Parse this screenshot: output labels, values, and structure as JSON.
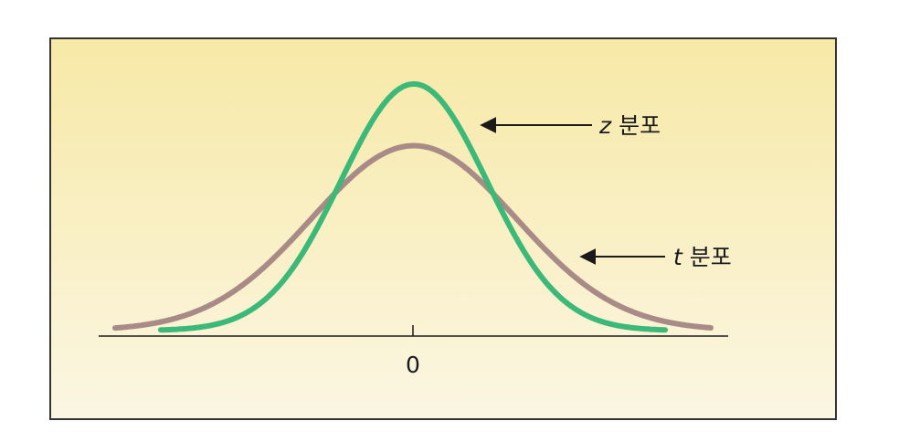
{
  "figure": {
    "background_top_color": "#f7e9a6",
    "background_bottom_color": "#fbf6e3",
    "border_color": "#333333"
  },
  "axis": {
    "zero_label": "0"
  },
  "curves": {
    "z": {
      "variable": "z",
      "suffix": " 분포",
      "color": "#3cb878",
      "relative_peak": 1.0,
      "relative_spread": 1.0
    },
    "t": {
      "variable": "t",
      "suffix": " 분포",
      "color": "#a88a86",
      "relative_peak": 0.75,
      "relative_spread": 1.4
    }
  }
}
